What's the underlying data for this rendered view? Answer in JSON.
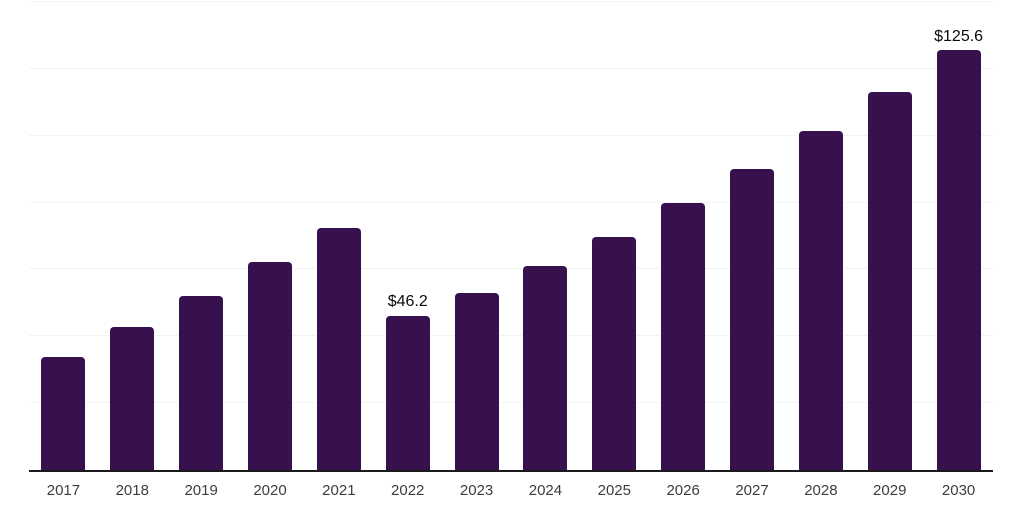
{
  "chart_data": {
    "type": "bar",
    "title": "",
    "xlabel": "",
    "ylabel": "",
    "categories": [
      "2017",
      "2018",
      "2019",
      "2020",
      "2021",
      "2022",
      "2023",
      "2024",
      "2025",
      "2026",
      "2027",
      "2028",
      "2029",
      "2030"
    ],
    "values": [
      33.8,
      42.8,
      52.2,
      62.2,
      72.4,
      46.2,
      52.9,
      61.0,
      69.7,
      79.8,
      90.0,
      101.4,
      113.0,
      125.6
    ],
    "data_labels": {
      "2022": "$46.2",
      "2030": "$125.6"
    },
    "ylim": [
      0,
      140
    ],
    "gridline_step": 20,
    "grid": "horizontal-only",
    "legend": "none",
    "colors": {
      "bar": "#37114E",
      "gridline": "#f3f3f3",
      "axis_line": "#1a1a1a",
      "tick_label": "#3d3d3d",
      "data_label": "#0a0a0a",
      "background": "#ffffff"
    }
  }
}
